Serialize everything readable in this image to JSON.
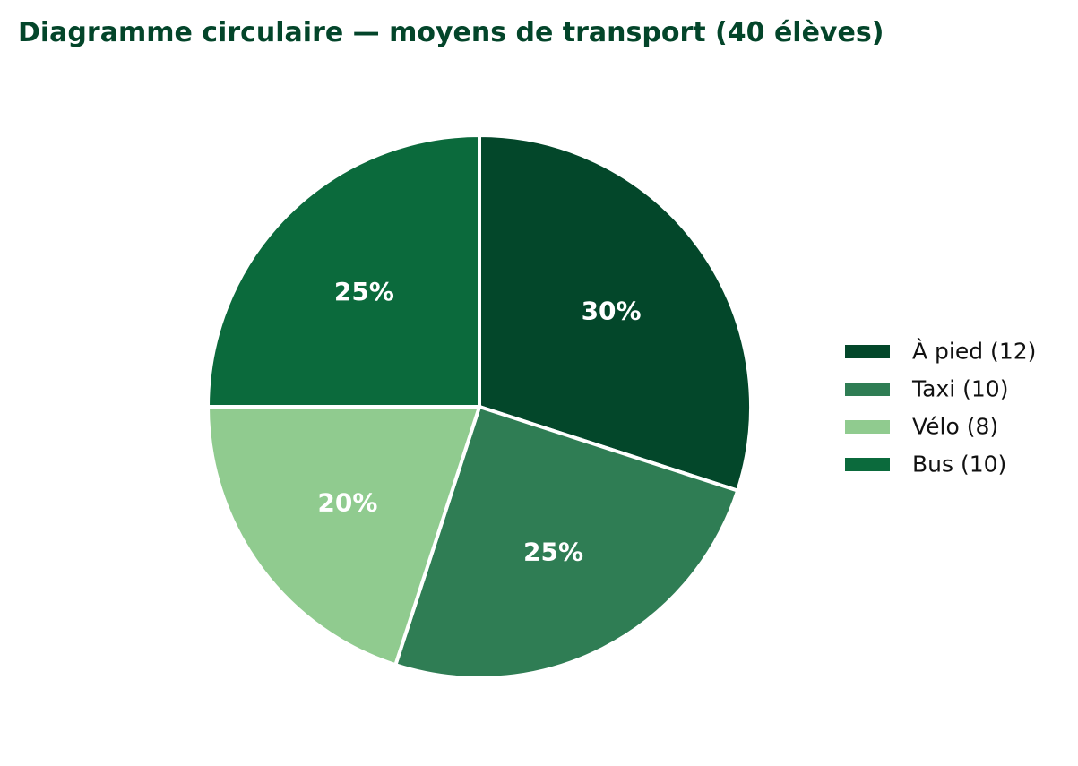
{
  "chart_data": {
    "type": "pie",
    "title": "Diagramme circulaire — moyens de transport (40 élèves)",
    "slices": [
      {
        "label": "À pied",
        "value": 12,
        "legend": "À pied (12)",
        "percent_label": "30%",
        "color": "#03472a"
      },
      {
        "label": "Taxi",
        "value": 10,
        "legend": "Taxi (10)",
        "percent_label": "25%",
        "color": "#2f7d54"
      },
      {
        "label": "Vélo",
        "value": 8,
        "legend": "Vélo (8)",
        "percent_label": "20%",
        "color": "#90cb8f"
      },
      {
        "label": "Bus",
        "value": 10,
        "legend": "Bus (10)",
        "percent_label": "25%",
        "color": "#0b6a3c"
      }
    ],
    "start_angle_deg": 90,
    "direction": "clockwise",
    "slice_edge_color": "#ffffff",
    "legend_placement": "right",
    "title_color": "#03452a"
  }
}
